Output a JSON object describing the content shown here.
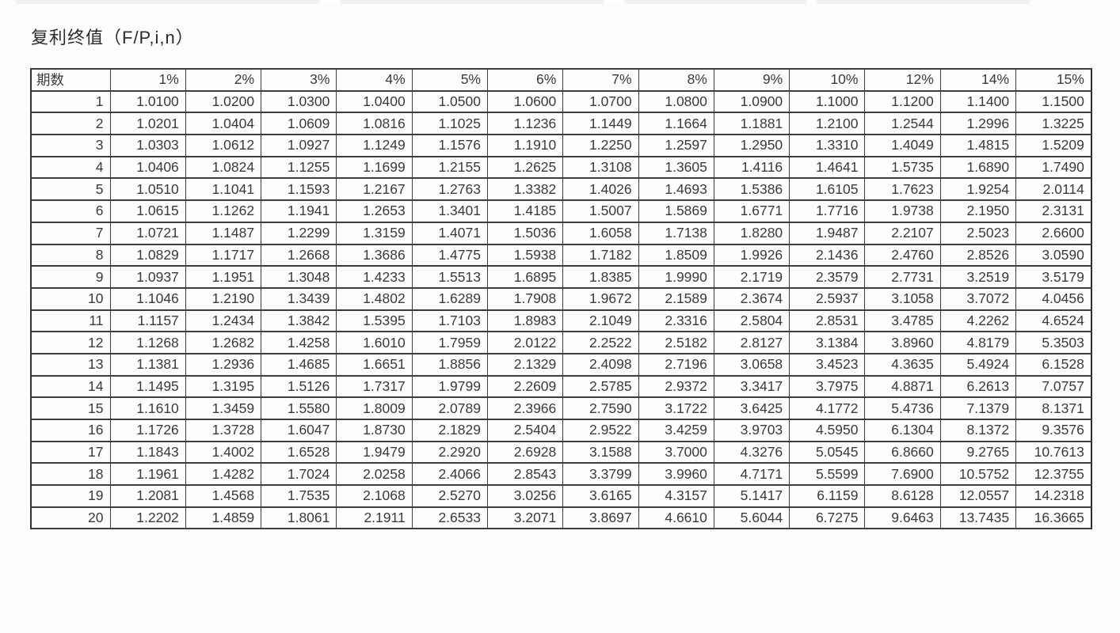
{
  "page": {
    "title": "复利终值（F/P,i,n）"
  },
  "table": {
    "row_header_label": "期数",
    "columns": [
      "1%",
      "2%",
      "3%",
      "4%",
      "5%",
      "6%",
      "7%",
      "8%",
      "9%",
      "10%",
      "12%",
      "14%",
      "15%"
    ],
    "rows": [
      {
        "n": "1",
        "values": [
          "1.0100",
          "1.0200",
          "1.0300",
          "1.0400",
          "1.0500",
          "1.0600",
          "1.0700",
          "1.0800",
          "1.0900",
          "1.1000",
          "1.1200",
          "1.1400",
          "1.1500"
        ]
      },
      {
        "n": "2",
        "values": [
          "1.0201",
          "1.0404",
          "1.0609",
          "1.0816",
          "1.1025",
          "1.1236",
          "1.1449",
          "1.1664",
          "1.1881",
          "1.2100",
          "1.2544",
          "1.2996",
          "1.3225"
        ]
      },
      {
        "n": "3",
        "values": [
          "1.0303",
          "1.0612",
          "1.0927",
          "1.1249",
          "1.1576",
          "1.1910",
          "1.2250",
          "1.2597",
          "1.2950",
          "1.3310",
          "1.4049",
          "1.4815",
          "1.5209"
        ]
      },
      {
        "n": "4",
        "values": [
          "1.0406",
          "1.0824",
          "1.1255",
          "1.1699",
          "1.2155",
          "1.2625",
          "1.3108",
          "1.3605",
          "1.4116",
          "1.4641",
          "1.5735",
          "1.6890",
          "1.7490"
        ]
      },
      {
        "n": "5",
        "values": [
          "1.0510",
          "1.1041",
          "1.1593",
          "1.2167",
          "1.2763",
          "1.3382",
          "1.4026",
          "1.4693",
          "1.5386",
          "1.6105",
          "1.7623",
          "1.9254",
          "2.0114"
        ]
      },
      {
        "n": "6",
        "values": [
          "1.0615",
          "1.1262",
          "1.1941",
          "1.2653",
          "1.3401",
          "1.4185",
          "1.5007",
          "1.5869",
          "1.6771",
          "1.7716",
          "1.9738",
          "2.1950",
          "2.3131"
        ]
      },
      {
        "n": "7",
        "values": [
          "1.0721",
          "1.1487",
          "1.2299",
          "1.3159",
          "1.4071",
          "1.5036",
          "1.6058",
          "1.7138",
          "1.8280",
          "1.9487",
          "2.2107",
          "2.5023",
          "2.6600"
        ]
      },
      {
        "n": "8",
        "values": [
          "1.0829",
          "1.1717",
          "1.2668",
          "1.3686",
          "1.4775",
          "1.5938",
          "1.7182",
          "1.8509",
          "1.9926",
          "2.1436",
          "2.4760",
          "2.8526",
          "3.0590"
        ]
      },
      {
        "n": "9",
        "values": [
          "1.0937",
          "1.1951",
          "1.3048",
          "1.4233",
          "1.5513",
          "1.6895",
          "1.8385",
          "1.9990",
          "2.1719",
          "2.3579",
          "2.7731",
          "3.2519",
          "3.5179"
        ]
      },
      {
        "n": "10",
        "values": [
          "1.1046",
          "1.2190",
          "1.3439",
          "1.4802",
          "1.6289",
          "1.7908",
          "1.9672",
          "2.1589",
          "2.3674",
          "2.5937",
          "3.1058",
          "3.7072",
          "4.0456"
        ]
      },
      {
        "n": "11",
        "values": [
          "1.1157",
          "1.2434",
          "1.3842",
          "1.5395",
          "1.7103",
          "1.8983",
          "2.1049",
          "2.3316",
          "2.5804",
          "2.8531",
          "3.4785",
          "4.2262",
          "4.6524"
        ]
      },
      {
        "n": "12",
        "values": [
          "1.1268",
          "1.2682",
          "1.4258",
          "1.6010",
          "1.7959",
          "2.0122",
          "2.2522",
          "2.5182",
          "2.8127",
          "3.1384",
          "3.8960",
          "4.8179",
          "5.3503"
        ]
      },
      {
        "n": "13",
        "values": [
          "1.1381",
          "1.2936",
          "1.4685",
          "1.6651",
          "1.8856",
          "2.1329",
          "2.4098",
          "2.7196",
          "3.0658",
          "3.4523",
          "4.3635",
          "5.4924",
          "6.1528"
        ]
      },
      {
        "n": "14",
        "values": [
          "1.1495",
          "1.3195",
          "1.5126",
          "1.7317",
          "1.9799",
          "2.2609",
          "2.5785",
          "2.9372",
          "3.3417",
          "3.7975",
          "4.8871",
          "6.2613",
          "7.0757"
        ]
      },
      {
        "n": "15",
        "values": [
          "1.1610",
          "1.3459",
          "1.5580",
          "1.8009",
          "2.0789",
          "2.3966",
          "2.7590",
          "3.1722",
          "3.6425",
          "4.1772",
          "5.4736",
          "7.1379",
          "8.1371"
        ]
      },
      {
        "n": "16",
        "values": [
          "1.1726",
          "1.3728",
          "1.6047",
          "1.8730",
          "2.1829",
          "2.5404",
          "2.9522",
          "3.4259",
          "3.9703",
          "4.5950",
          "6.1304",
          "8.1372",
          "9.3576"
        ]
      },
      {
        "n": "17",
        "values": [
          "1.1843",
          "1.4002",
          "1.6528",
          "1.9479",
          "2.2920",
          "2.6928",
          "3.1588",
          "3.7000",
          "4.3276",
          "5.0545",
          "6.8660",
          "9.2765",
          "10.7613"
        ]
      },
      {
        "n": "18",
        "values": [
          "1.1961",
          "1.4282",
          "1.7024",
          "2.0258",
          "2.4066",
          "2.8543",
          "3.3799",
          "3.9960",
          "4.7171",
          "5.5599",
          "7.6900",
          "10.5752",
          "12.3755"
        ]
      },
      {
        "n": "19",
        "values": [
          "1.2081",
          "1.4568",
          "1.7535",
          "2.1068",
          "2.5270",
          "3.0256",
          "3.6165",
          "4.3157",
          "5.1417",
          "6.1159",
          "8.6128",
          "12.0557",
          "14.2318"
        ]
      },
      {
        "n": "20",
        "values": [
          "1.2202",
          "1.4859",
          "1.8061",
          "2.1911",
          "2.6533",
          "3.2071",
          "3.8697",
          "4.6610",
          "5.6044",
          "6.7275",
          "9.6463",
          "13.7435",
          "16.3665"
        ]
      }
    ]
  },
  "colors": {
    "background": "#fcfcfc",
    "grid_line": "#3c3c3c",
    "text": "#3a3a3a"
  }
}
